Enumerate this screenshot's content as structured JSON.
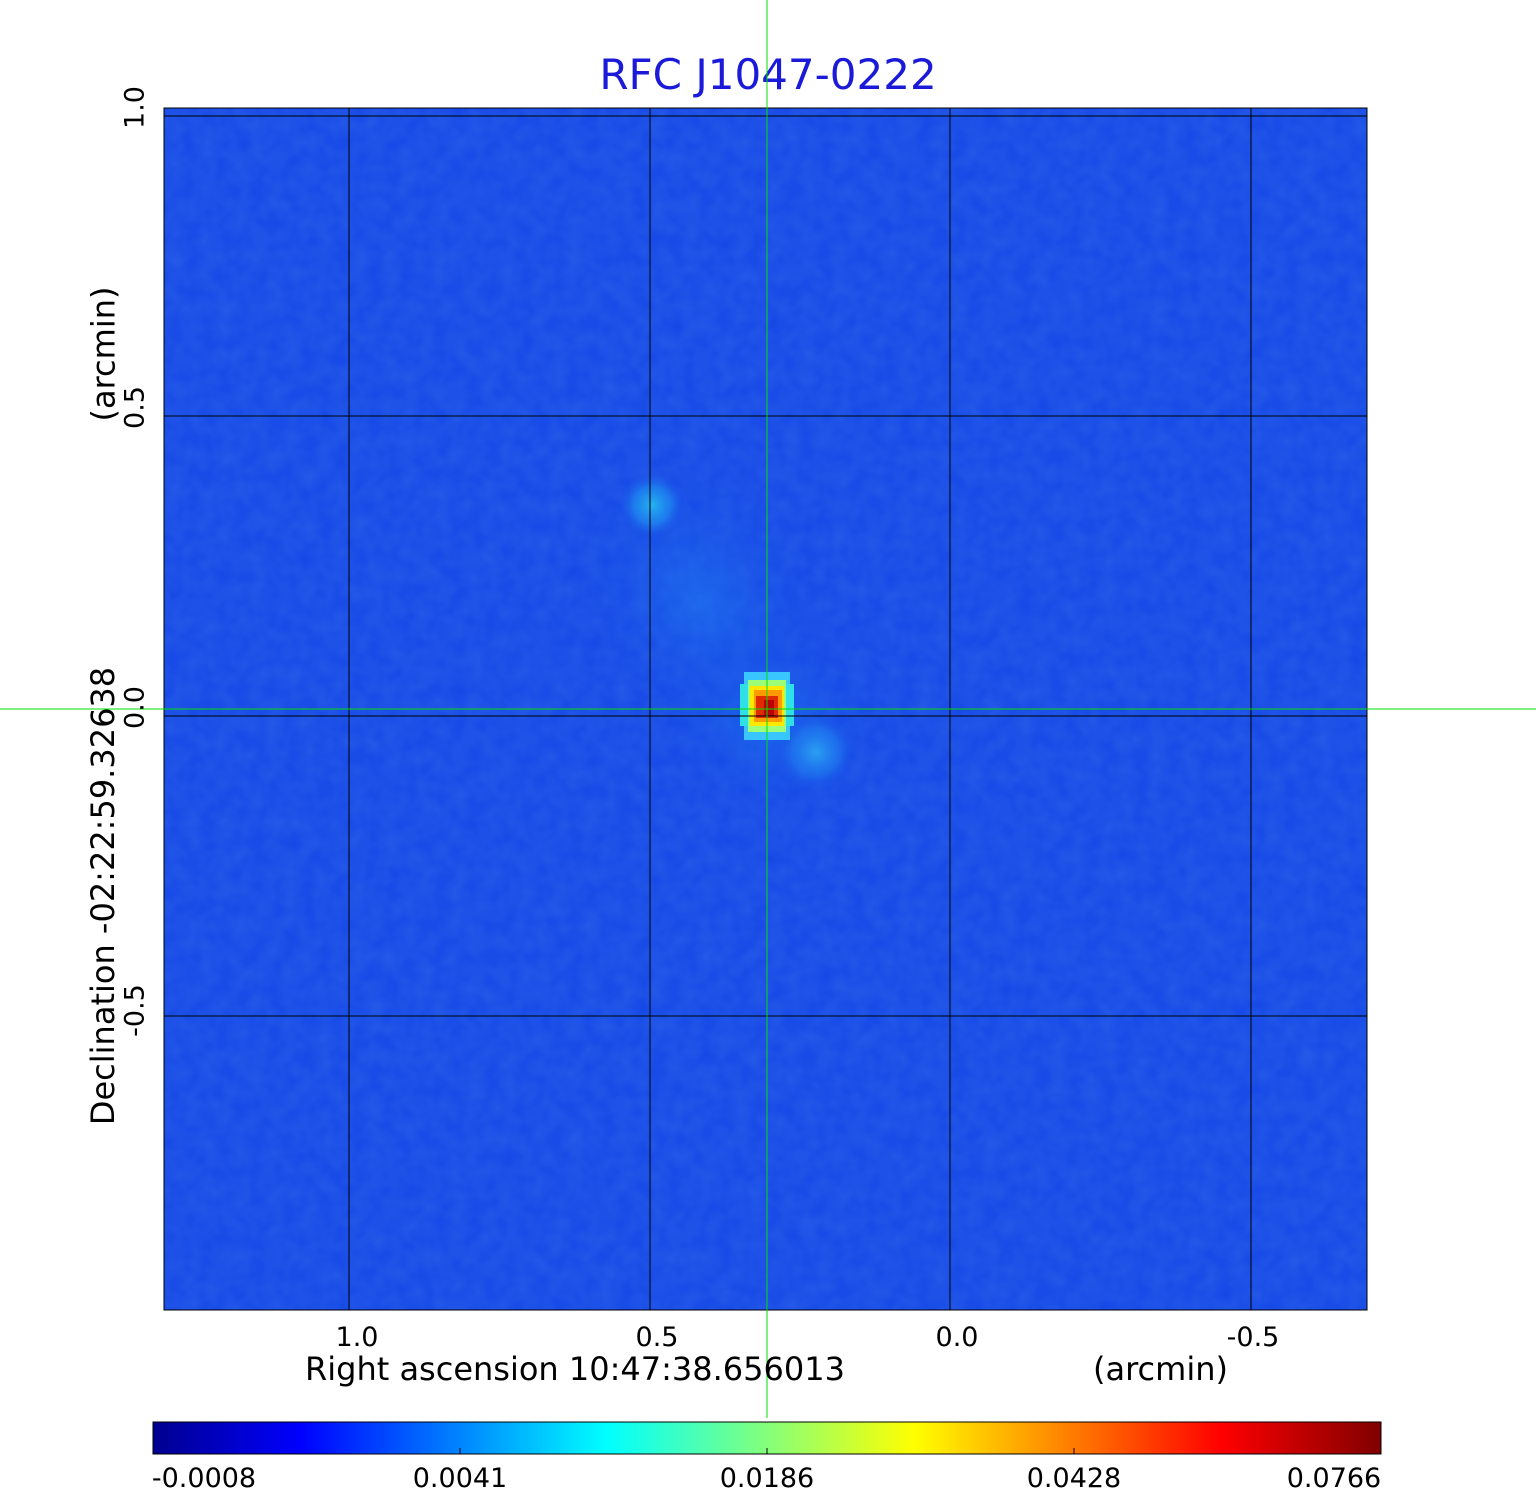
{
  "title": "RFC J1047-0222",
  "x_axis": {
    "label": "Right ascension  10:47:38.656013",
    "unit": "(arcmin)",
    "ticks": [
      "1.0",
      "0.5",
      "0.0",
      "-0.5"
    ]
  },
  "y_axis": {
    "label": "Declination  -02:22:59.32638",
    "unit": "(arcmin)",
    "ticks": [
      "1.0",
      "0.5",
      "0.0",
      "-0.5"
    ]
  },
  "colorbar": {
    "ticks": [
      "-0.0008",
      "0.0041",
      "0.0186",
      "0.0428",
      "0.0766"
    ],
    "colors": [
      "#00008f",
      "#0040ff",
      "#00ffff",
      "#ffff00",
      "#ff0000",
      "#800000"
    ]
  },
  "image": {
    "colormap": "jet",
    "grid_color": "#000000",
    "crosshair_color": "#00e000",
    "background_color": "#1446e6",
    "peak_color": "#d61a00"
  }
}
